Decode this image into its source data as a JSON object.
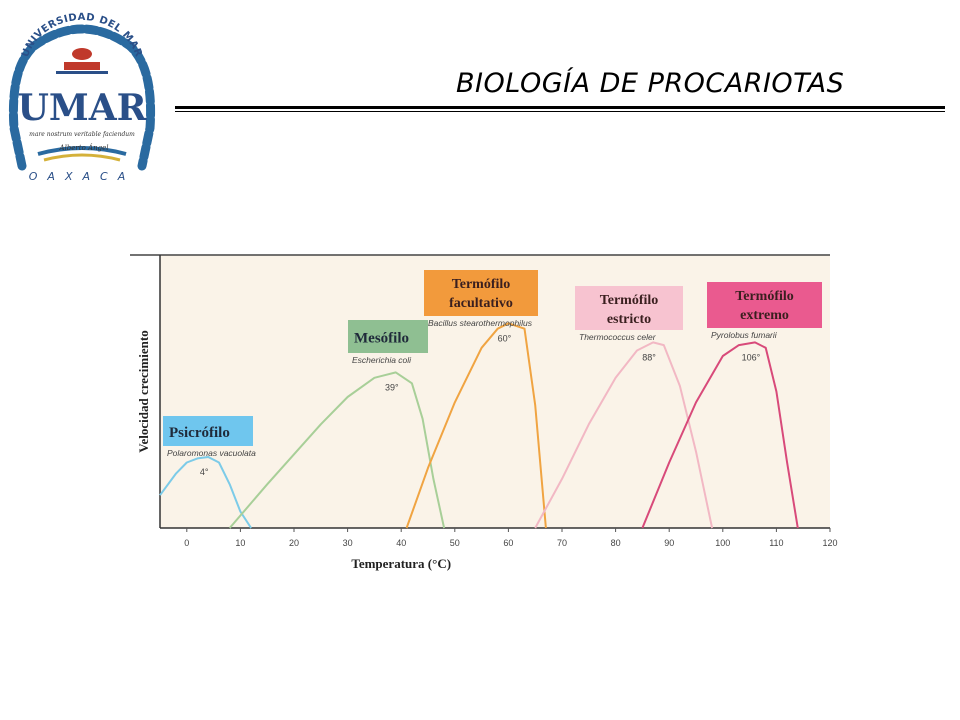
{
  "header": {
    "title": "BIOLOGÍA DE PROCARIOTAS",
    "logo": {
      "arc_text": "UNIVERSIDAD DEL MAR",
      "initials": "UMAR",
      "motto": "mare nostrum veritable faciendum",
      "signature": "Alberto Ángel",
      "state_letters": "O A X A C A"
    }
  },
  "chart_data": {
    "type": "line",
    "xlabel": "Temperatura (°C)",
    "ylabel": "Velocidad crecimiento",
    "xlim": [
      -5,
      120
    ],
    "xticks": [
      0,
      10,
      20,
      30,
      40,
      50,
      60,
      70,
      80,
      90,
      100,
      110,
      120
    ],
    "y_units": "relative",
    "background": "#faf3e8",
    "series": [
      {
        "name": "Psicrófilo",
        "organism": "Polaromonas vacuolata",
        "optimum_label": "4°",
        "color": "#7ccbe8",
        "label_bg": "#6fc6ee",
        "x": [
          -5,
          -2,
          0,
          2,
          4,
          6,
          8,
          10,
          12
        ],
        "y": [
          0.12,
          0.2,
          0.24,
          0.255,
          0.26,
          0.24,
          0.16,
          0.06,
          0
        ]
      },
      {
        "name": "Mesófilo",
        "organism": "Escherichia coli",
        "optimum_label": "39°",
        "color": "#a8cf98",
        "label_bg": "#8fbf92",
        "x": [
          8,
          15,
          20,
          25,
          30,
          35,
          39,
          42,
          44,
          46,
          48
        ],
        "y": [
          0,
          0.16,
          0.27,
          0.38,
          0.48,
          0.55,
          0.57,
          0.53,
          0.4,
          0.18,
          0
        ]
      },
      {
        "name": "Termófilo facultativo",
        "organism": "Bacillus stearothermophilus",
        "optimum_label": "60°",
        "color": "#f0a442",
        "label_bg": "#f29a3c",
        "x": [
          41,
          45,
          50,
          55,
          58,
          60,
          63,
          65,
          67
        ],
        "y": [
          0,
          0.22,
          0.46,
          0.66,
          0.73,
          0.75,
          0.73,
          0.45,
          0
        ]
      },
      {
        "name": "Termófilo estricto",
        "organism": "Thermococcus celer",
        "optimum_label": "88°",
        "color": "#f2b8c4",
        "label_bg": "#f7c3d0",
        "x": [
          65,
          70,
          75,
          80,
          84,
          87,
          89,
          92,
          95,
          98
        ],
        "y": [
          0,
          0.18,
          0.38,
          0.55,
          0.65,
          0.68,
          0.67,
          0.52,
          0.28,
          0
        ]
      },
      {
        "name": "Termófilo extremo",
        "organism": "Pyrolobus fumarii",
        "optimum_label": "106°",
        "color": "#d84a7a",
        "label_bg": "#ea5a8f",
        "x": [
          85,
          90,
          95,
          100,
          103,
          106,
          108,
          110,
          112,
          114
        ],
        "y": [
          0,
          0.24,
          0.46,
          0.63,
          0.67,
          0.68,
          0.66,
          0.5,
          0.24,
          0
        ]
      }
    ]
  }
}
